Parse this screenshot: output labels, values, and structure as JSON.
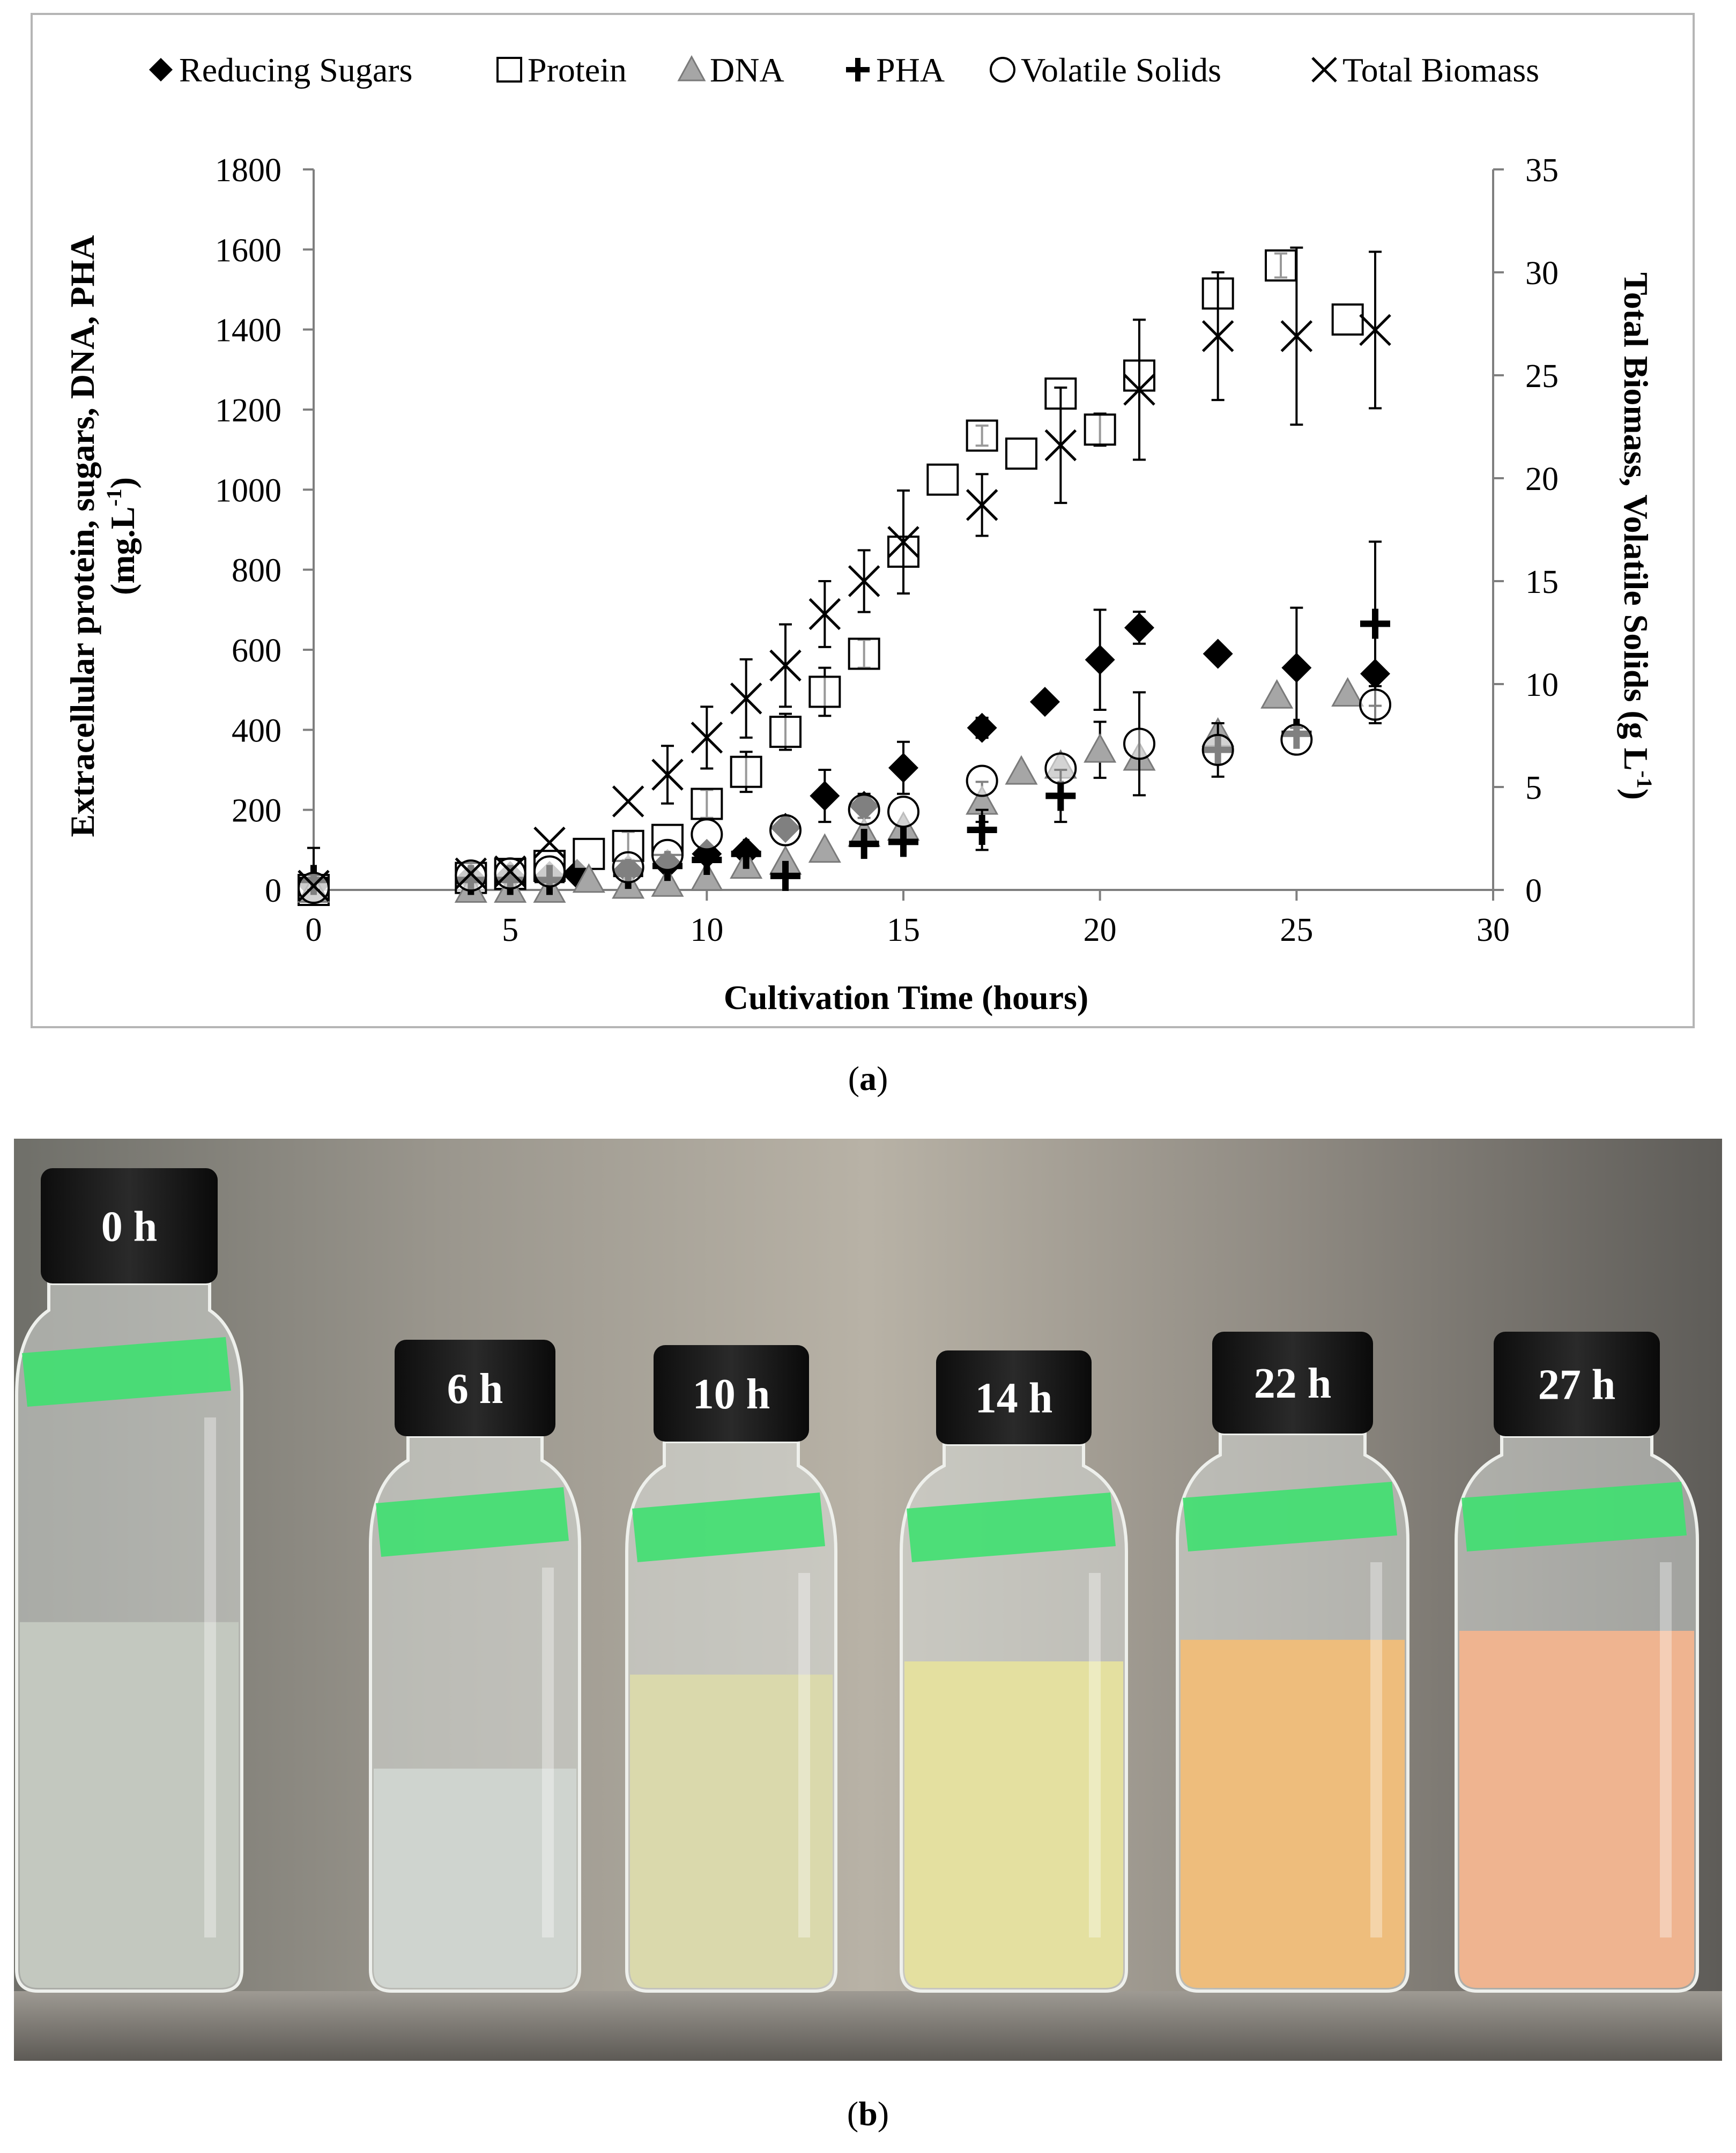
{
  "legend": [
    {
      "marker": "diamond",
      "label": "Reducing Sugars"
    },
    {
      "marker": "square",
      "label": "Protein"
    },
    {
      "marker": "triangle",
      "label": "DNA"
    },
    {
      "marker": "plus",
      "label": "PHA"
    },
    {
      "marker": "circle",
      "label": "Volatile Solids"
    },
    {
      "marker": "cross",
      "label": "Total Biomass"
    }
  ],
  "caption_a_open": "(",
  "caption_a_letter": "a",
  "caption_a_close": ")",
  "caption_b_open": "(",
  "caption_b_letter": "b",
  "caption_b_close": ")",
  "photo_labels": [
    "0 h",
    "6 h",
    "10 h",
    "14 h",
    "22 h",
    "27 h"
  ],
  "colors": {
    "marker_dark": "#000000",
    "marker_gray": "#a6a6a6",
    "frame": "#b5b5b5"
  },
  "chart_data": {
    "type": "scatter",
    "xlabel": "Cultivation Time (hours)",
    "ylabel_left_line1": "Extracellular protein, sugars, DNA, PHA",
    "ylabel_left_line2": "(mg.L",
    "ylabel_left_sup": "-1",
    "ylabel_left_line2_end": ")",
    "ylabel_right_main": "Total Biomass, Volatile Solids (g L",
    "ylabel_right_sup": "-1",
    "ylabel_right_end": ")",
    "xlim": [
      0,
      30
    ],
    "ylim_left": [
      0,
      1800
    ],
    "ylim_right": [
      0,
      35
    ],
    "x_ticks": [
      0,
      5,
      10,
      15,
      20,
      25,
      30
    ],
    "y_left_ticks": [
      0,
      200,
      400,
      600,
      800,
      1000,
      1200,
      1400,
      1600,
      1800
    ],
    "y_right_ticks": [
      0,
      5,
      10,
      15,
      20,
      25,
      30,
      35
    ],
    "grid": false,
    "legend_position": "top",
    "series": [
      {
        "name": "Reducing Sugars",
        "axis": "left",
        "marker": "diamond",
        "color": "#000000",
        "points": [
          [
            0,
            10,
            5
          ],
          [
            4,
            30,
            0
          ],
          [
            5,
            35,
            0
          ],
          [
            6,
            35,
            0
          ],
          [
            6.7,
            40,
            0
          ],
          [
            8,
            50,
            0
          ],
          [
            9,
            65,
            0
          ],
          [
            10,
            90,
            0
          ],
          [
            11,
            95,
            0
          ],
          [
            12,
            155,
            0
          ],
          [
            13,
            235,
            65
          ],
          [
            14,
            210,
            30
          ],
          [
            15,
            305,
            65
          ],
          [
            17,
            405,
            25
          ],
          [
            18.6,
            470,
            0
          ],
          [
            20,
            575,
            125
          ],
          [
            21,
            655,
            40
          ],
          [
            23,
            590,
            0
          ],
          [
            25,
            555,
            150
          ],
          [
            27,
            540,
            0
          ]
        ]
      },
      {
        "name": "Protein",
        "axis": "left",
        "marker": "square",
        "color": "#000000",
        "points": [
          [
            0,
            0,
            0
          ],
          [
            4,
            30,
            0
          ],
          [
            5,
            40,
            0
          ],
          [
            6,
            60,
            0
          ],
          [
            7,
            90,
            0
          ],
          [
            8,
            110,
            35
          ],
          [
            9,
            125,
            0
          ],
          [
            10,
            215,
            35
          ],
          [
            11,
            295,
            50
          ],
          [
            12,
            395,
            45
          ],
          [
            13,
            495,
            60
          ],
          [
            14,
            590,
            35
          ],
          [
            15,
            845,
            0
          ],
          [
            16,
            1025,
            0
          ],
          [
            17,
            1135,
            25
          ],
          [
            18,
            1090,
            0
          ],
          [
            19,
            1240,
            0
          ],
          [
            20,
            1150,
            40
          ],
          [
            21,
            1285,
            0
          ],
          [
            23,
            1490,
            0
          ],
          [
            24.6,
            1560,
            30
          ],
          [
            26.3,
            1425,
            0
          ]
        ]
      },
      {
        "name": "DNA",
        "axis": "left",
        "marker": "triangle",
        "color": "#a6a6a6",
        "points": [
          [
            0,
            0,
            0
          ],
          [
            4,
            0,
            0
          ],
          [
            5,
            0,
            0
          ],
          [
            6,
            0,
            0
          ],
          [
            7,
            25,
            0
          ],
          [
            8,
            10,
            0
          ],
          [
            9,
            15,
            0
          ],
          [
            10,
            30,
            0
          ],
          [
            11,
            60,
            0
          ],
          [
            12,
            70,
            0
          ],
          [
            13,
            100,
            0
          ],
          [
            14,
            140,
            0
          ],
          [
            15,
            155,
            0
          ],
          [
            17,
            220,
            50
          ],
          [
            18,
            295,
            0
          ],
          [
            19,
            310,
            0
          ],
          [
            20,
            350,
            70
          ],
          [
            21,
            330,
            0
          ],
          [
            23,
            390,
            0
          ],
          [
            24.5,
            485,
            0
          ],
          [
            26.3,
            490,
            0
          ]
        ]
      },
      {
        "name": "PHA",
        "axis": "left",
        "marker": "plus",
        "color": "#000000",
        "points": [
          [
            0,
            25,
            80
          ],
          [
            4,
            25,
            0
          ],
          [
            5,
            25,
            0
          ],
          [
            6,
            25,
            0
          ],
          [
            8,
            40,
            0
          ],
          [
            9,
            60,
            0
          ],
          [
            10,
            75,
            0
          ],
          [
            11,
            90,
            0
          ],
          [
            12,
            35,
            0
          ],
          [
            14,
            115,
            0
          ],
          [
            15,
            120,
            0
          ],
          [
            17,
            150,
            50
          ],
          [
            19,
            235,
            65
          ],
          [
            23,
            350,
            0
          ],
          [
            25,
            390,
            0
          ],
          [
            27,
            665,
            205
          ]
        ]
      },
      {
        "name": "Volatile Solids",
        "axis": "right",
        "marker": "circle",
        "color": "#000000",
        "points": [
          [
            0,
            0.1,
            0
          ],
          [
            4,
            0.7,
            0
          ],
          [
            5,
            0.8,
            0
          ],
          [
            6,
            0.9,
            0
          ],
          [
            8,
            1.1,
            0
          ],
          [
            9,
            1.7,
            0
          ],
          [
            10,
            2.7,
            0
          ],
          [
            12,
            2.9,
            0
          ],
          [
            14,
            3.9,
            0
          ],
          [
            15,
            3.8,
            0
          ],
          [
            17,
            5.3,
            0
          ],
          [
            19,
            5.9,
            0
          ],
          [
            21,
            7.1,
            2.5
          ],
          [
            23,
            6.8,
            1.3
          ],
          [
            25,
            7.3,
            0
          ],
          [
            27,
            9.0,
            0.9
          ]
        ]
      },
      {
        "name": "Total Biomass",
        "axis": "right",
        "marker": "cross",
        "color": "#000000",
        "points": [
          [
            0,
            0.2,
            0
          ],
          [
            4,
            0.8,
            0
          ],
          [
            5,
            0.9,
            0
          ],
          [
            6,
            2.3,
            0
          ],
          [
            8,
            4.3,
            0
          ],
          [
            9,
            5.6,
            1.4
          ],
          [
            10,
            7.4,
            1.5
          ],
          [
            11,
            9.3,
            1.9
          ],
          [
            12,
            10.9,
            2.0
          ],
          [
            13,
            13.4,
            1.6
          ],
          [
            14,
            15.0,
            1.5
          ],
          [
            15,
            16.9,
            2.5
          ],
          [
            17,
            18.7,
            1.5
          ],
          [
            19,
            21.6,
            2.8
          ],
          [
            21,
            24.3,
            3.4
          ],
          [
            23,
            26.9,
            3.1
          ],
          [
            25,
            26.9,
            4.3
          ],
          [
            27,
            27.2,
            3.8
          ]
        ]
      }
    ]
  }
}
